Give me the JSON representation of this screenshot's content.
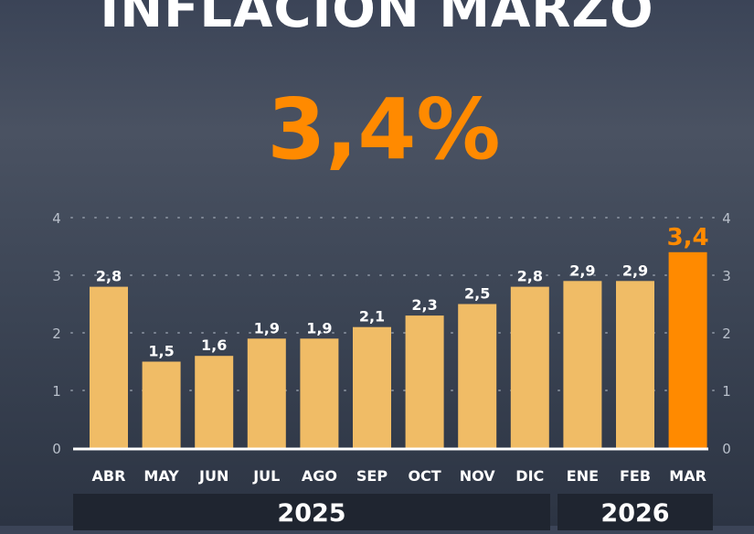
{
  "title": "INFLACION MARZO",
  "headline_value": "3,4%",
  "chart_data": {
    "type": "bar",
    "categories": [
      "ABR",
      "MAY",
      "JUN",
      "JUL",
      "AGO",
      "SEP",
      "OCT",
      "NOV",
      "DIC",
      "ENE",
      "FEB",
      "MAR"
    ],
    "values": [
      2.8,
      1.5,
      1.6,
      1.9,
      1.9,
      2.1,
      2.3,
      2.5,
      2.8,
      2.9,
      2.9,
      3.4
    ],
    "data_labels": [
      "2,8",
      "1,5",
      "1,6",
      "1,9",
      "1,9",
      "2,1",
      "2,3",
      "2,5",
      "2,8",
      "2,9",
      "2,9",
      "3,4"
    ],
    "year_groups": [
      {
        "label": "2025",
        "from": "ABR",
        "to": "DIC"
      },
      {
        "label": "2026",
        "from": "ENE",
        "to": "MAR"
      }
    ],
    "yticks": [
      "0",
      "1",
      "2",
      "3",
      "4"
    ],
    "ylim": [
      0,
      4
    ],
    "grid": "dotted horizontal",
    "colors": {
      "bar": "#f0bc66",
      "highlight": "#ff8a00"
    },
    "highlight": "MAR"
  }
}
